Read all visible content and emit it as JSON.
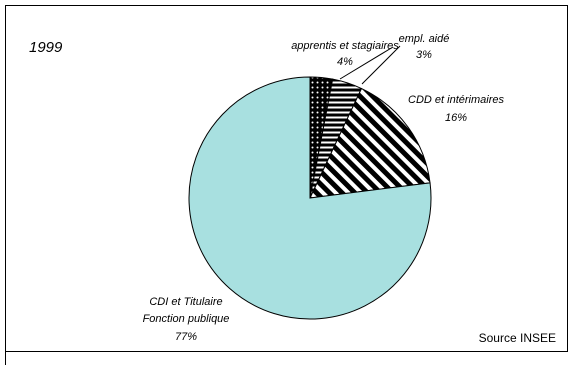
{
  "chart_data": {
    "type": "pie",
    "title": "1999",
    "note": "Source INSEE",
    "slices": [
      {
        "label_lines": [
          "empl. aidé"
        ],
        "percent_label": "3%",
        "value": 3,
        "fill": "dots"
      },
      {
        "label_lines": [
          "apprentis et stagiaires"
        ],
        "percent_label": "4%",
        "value": 4,
        "fill": "hstripes"
      },
      {
        "label_lines": [
          "CDD et intérimaires"
        ],
        "percent_label": "16%",
        "value": 16,
        "fill": "diagstripes"
      },
      {
        "label_lines": [
          "CDI et Titulaire",
          "Fonction publique"
        ],
        "percent_label": "77%",
        "value": 77,
        "fill": "solid"
      }
    ],
    "colors": {
      "solid_slice": "#a8e0e0",
      "stroke": "#000000"
    }
  }
}
